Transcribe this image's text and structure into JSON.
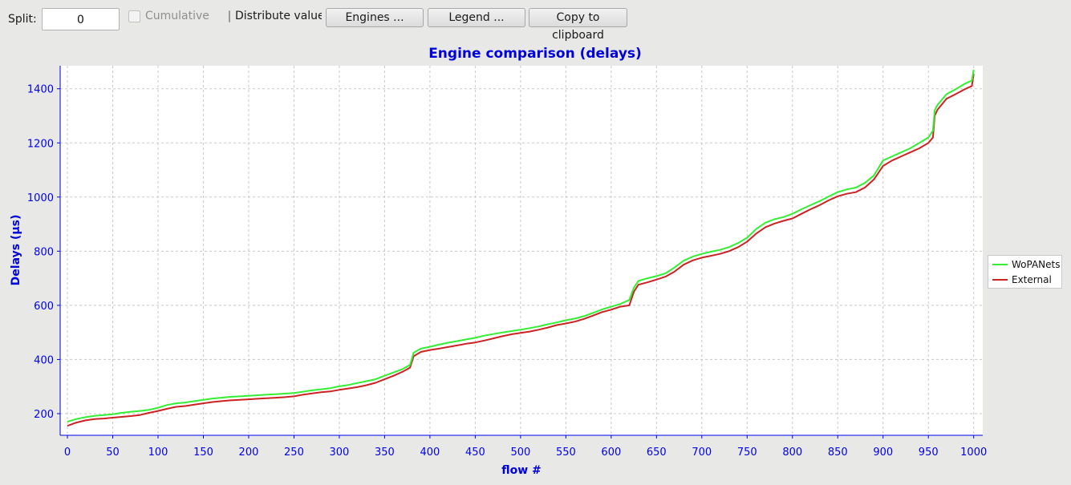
{
  "toolbar": {
    "split_label": "Split:",
    "split_value": "0",
    "cumulative_label": "Cumulative",
    "distribute_label": "Distribute values",
    "engines_button": "Engines ...",
    "legend_button": "Legend ...",
    "copy_button": "Copy to clipboard"
  },
  "colors": {
    "axis": "#0000ee",
    "title": "#0000dd",
    "series_wopanets": "#33ee33",
    "series_external": "#cc2222"
  },
  "chart_data": {
    "type": "line",
    "title": "Engine comparison (delays)",
    "xlabel": "flow #",
    "ylabel": "Delays (µs)",
    "xlim": [
      -8,
      1010
    ],
    "ylim": [
      120,
      1485
    ],
    "xticks": [
      0,
      50,
      100,
      150,
      200,
      250,
      300,
      350,
      400,
      450,
      500,
      550,
      600,
      650,
      700,
      750,
      800,
      850,
      900,
      950,
      1000
    ],
    "yticks": [
      200,
      400,
      600,
      800,
      1000,
      1200,
      1400
    ],
    "grid": true,
    "legend_position": "right",
    "series": [
      {
        "name": "WoPANets",
        "x": [
          0,
          10,
          20,
          30,
          40,
          50,
          60,
          70,
          80,
          90,
          100,
          110,
          120,
          130,
          140,
          150,
          160,
          170,
          180,
          190,
          200,
          210,
          220,
          230,
          240,
          250,
          260,
          270,
          280,
          290,
          300,
          310,
          320,
          330,
          340,
          350,
          360,
          370,
          378,
          382,
          390,
          400,
          410,
          420,
          430,
          440,
          450,
          460,
          470,
          480,
          490,
          500,
          510,
          520,
          530,
          540,
          550,
          560,
          570,
          580,
          590,
          600,
          610,
          620,
          625,
          630,
          640,
          650,
          660,
          670,
          680,
          690,
          700,
          710,
          720,
          730,
          740,
          750,
          760,
          770,
          780,
          790,
          800,
          810,
          820,
          830,
          840,
          850,
          860,
          870,
          880,
          890,
          900,
          910,
          920,
          930,
          940,
          950,
          955,
          957,
          960,
          970,
          980,
          990,
          998,
          1000
        ],
        "values": [
          170,
          180,
          187,
          192,
          195,
          198,
          203,
          207,
          210,
          214,
          222,
          232,
          238,
          241,
          246,
          251,
          256,
          259,
          262,
          264,
          266,
          268,
          270,
          272,
          274,
          276,
          281,
          286,
          290,
          294,
          301,
          306,
          313,
          320,
          327,
          340,
          352,
          365,
          380,
          425,
          440,
          447,
          455,
          462,
          468,
          474,
          480,
          488,
          494,
          500,
          505,
          510,
          516,
          522,
          530,
          537,
          545,
          551,
          560,
          572,
          585,
          595,
          605,
          620,
          665,
          690,
          700,
          708,
          718,
          740,
          765,
          780,
          790,
          798,
          805,
          815,
          830,
          850,
          882,
          905,
          918,
          926,
          938,
          955,
          970,
          985,
          1002,
          1018,
          1028,
          1035,
          1052,
          1080,
          1135,
          1150,
          1165,
          1180,
          1200,
          1220,
          1245,
          1320,
          1340,
          1380,
          1398,
          1418,
          1430,
          1470
        ]
      },
      {
        "name": "External",
        "x": [
          0,
          10,
          20,
          30,
          40,
          50,
          60,
          70,
          80,
          90,
          100,
          110,
          120,
          130,
          140,
          150,
          160,
          170,
          180,
          190,
          200,
          210,
          220,
          230,
          240,
          250,
          260,
          270,
          280,
          290,
          300,
          310,
          320,
          330,
          340,
          350,
          360,
          370,
          378,
          382,
          390,
          400,
          410,
          420,
          430,
          440,
          450,
          460,
          470,
          480,
          490,
          500,
          510,
          520,
          530,
          540,
          550,
          560,
          570,
          580,
          590,
          600,
          610,
          620,
          625,
          630,
          640,
          650,
          660,
          670,
          680,
          690,
          700,
          710,
          720,
          730,
          740,
          750,
          760,
          770,
          780,
          790,
          800,
          810,
          820,
          830,
          840,
          850,
          860,
          870,
          880,
          890,
          900,
          910,
          920,
          930,
          940,
          950,
          955,
          957,
          960,
          970,
          980,
          990,
          998,
          1000
        ],
        "values": [
          155,
          167,
          175,
          180,
          182,
          185,
          188,
          191,
          195,
          203,
          210,
          218,
          225,
          228,
          233,
          238,
          243,
          246,
          249,
          251,
          253,
          255,
          257,
          259,
          261,
          264,
          270,
          275,
          279,
          282,
          288,
          293,
          298,
          305,
          314,
          327,
          340,
          355,
          370,
          412,
          428,
          435,
          440,
          446,
          452,
          458,
          463,
          470,
          478,
          486,
          493,
          498,
          503,
          510,
          518,
          527,
          533,
          540,
          550,
          562,
          575,
          584,
          595,
          600,
          650,
          676,
          685,
          695,
          706,
          725,
          750,
          766,
          776,
          783,
          790,
          800,
          815,
          835,
          865,
          888,
          902,
          912,
          921,
          938,
          955,
          970,
          988,
          1003,
          1012,
          1018,
          1035,
          1065,
          1115,
          1135,
          1150,
          1165,
          1180,
          1200,
          1220,
          1300,
          1322,
          1363,
          1380,
          1398,
          1410,
          1455
        ]
      }
    ]
  }
}
